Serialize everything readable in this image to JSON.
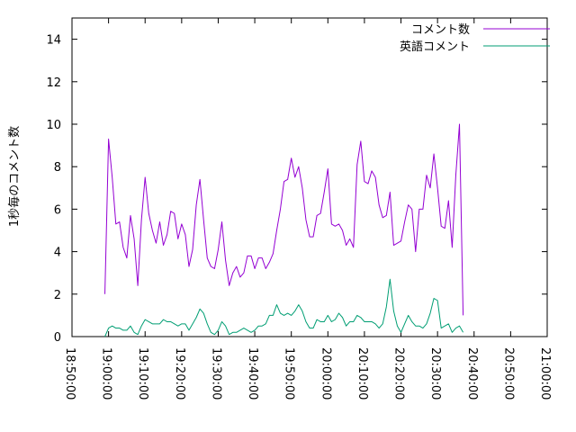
{
  "chart_data": {
    "type": "line",
    "title": "",
    "xlabel": "",
    "ylabel": "1秒毎のコメント数",
    "xlim": [
      "18:50:00",
      "21:00:00"
    ],
    "ylim": [
      0,
      15
    ],
    "x_tick_labels": [
      "18:50:00",
      "19:00:00",
      "19:10:00",
      "19:20:00",
      "19:30:00",
      "19:40:00",
      "19:50:00",
      "20:00:00",
      "20:10:00",
      "20:20:00",
      "20:30:00",
      "20:40:00",
      "20:50:00",
      "21:00:00"
    ],
    "y_ticks": [
      0,
      2,
      4,
      6,
      8,
      10,
      12,
      14
    ],
    "grid": false,
    "legend_position": "top-right",
    "x_start": "18:59:00",
    "x_step_seconds": 60,
    "series": [
      {
        "name": "コメント数",
        "color": "#9400d3",
        "values": [
          2.0,
          9.3,
          7.5,
          5.3,
          5.4,
          4.2,
          3.7,
          5.7,
          4.6,
          2.4,
          5.5,
          7.5,
          5.8,
          5.0,
          4.4,
          5.4,
          4.3,
          4.8,
          5.9,
          5.8,
          4.6,
          5.3,
          4.8,
          3.3,
          4.1,
          6.2,
          7.4,
          5.5,
          3.7,
          3.3,
          3.2,
          4.1,
          5.4,
          3.6,
          2.4,
          3.0,
          3.3,
          2.8,
          3.0,
          3.8,
          3.8,
          3.2,
          3.7,
          3.7,
          3.2,
          3.5,
          3.9,
          5.0,
          6.0,
          7.3,
          7.4,
          8.4,
          7.5,
          8.0,
          7.0,
          5.5,
          4.7,
          4.7,
          5.7,
          5.8,
          6.8,
          7.9,
          5.3,
          5.2,
          5.3,
          5.0,
          4.3,
          4.6,
          4.2,
          8.1,
          9.2,
          7.3,
          7.2,
          7.8,
          7.5,
          6.2,
          5.6,
          5.7,
          6.8,
          4.3,
          4.4,
          4.5,
          5.4,
          6.2,
          6.0,
          4.0,
          6.0,
          6.0,
          7.6,
          7.0,
          8.6,
          7.0,
          5.2,
          5.1,
          6.4,
          4.2,
          7.6,
          10.0,
          1.0
        ]
      },
      {
        "name": "英語コメント",
        "color": "#009e73",
        "values": [
          0.0,
          0.4,
          0.5,
          0.4,
          0.4,
          0.3,
          0.3,
          0.5,
          0.2,
          0.1,
          0.5,
          0.8,
          0.7,
          0.6,
          0.6,
          0.6,
          0.8,
          0.7,
          0.7,
          0.6,
          0.5,
          0.6,
          0.6,
          0.3,
          0.6,
          0.9,
          1.3,
          1.1,
          0.6,
          0.2,
          0.1,
          0.3,
          0.7,
          0.5,
          0.1,
          0.2,
          0.2,
          0.3,
          0.4,
          0.3,
          0.2,
          0.3,
          0.5,
          0.5,
          0.6,
          1.0,
          1.0,
          1.5,
          1.1,
          1.0,
          1.1,
          1.0,
          1.2,
          1.5,
          1.2,
          0.7,
          0.4,
          0.4,
          0.8,
          0.7,
          0.7,
          1.0,
          0.7,
          0.8,
          1.1,
          0.9,
          0.5,
          0.7,
          0.7,
          1.0,
          0.9,
          0.7,
          0.7,
          0.7,
          0.6,
          0.4,
          0.6,
          1.4,
          2.7,
          1.2,
          0.5,
          0.2,
          0.6,
          1.0,
          0.7,
          0.5,
          0.5,
          0.4,
          0.6,
          1.1,
          1.8,
          1.7,
          0.4,
          0.5,
          0.6,
          0.2,
          0.4,
          0.5,
          0.2
        ]
      }
    ]
  }
}
